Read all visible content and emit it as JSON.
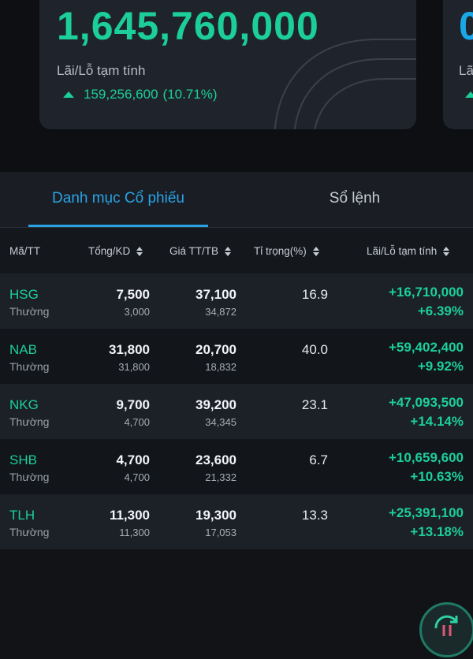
{
  "summary_card": {
    "value": "1,645,760,000",
    "pnl_label": "Lãi/Lỗ tạm tính",
    "pnl_value": "159,256,600",
    "pnl_pct": "(10.71%)"
  },
  "summary_card_2": {
    "value": "0",
    "pnl_label": "Lã"
  },
  "tabs": [
    {
      "label": "Danh mục Cổ phiếu",
      "active": true
    },
    {
      "label": "Sổ lệnh",
      "active": false
    }
  ],
  "table": {
    "headers": {
      "symbol": "Mã/TT",
      "total": "Tổng/KD",
      "price": "Giá TT/TB",
      "weight": "Tỉ trọng(%)",
      "pnl": "Lãi/Lỗ tạm tính"
    },
    "rows": [
      {
        "symbol": "HSG",
        "type": "Thường",
        "total": "7,500",
        "available": "3,000",
        "price": "37,100",
        "avg_price": "34,872",
        "weight": "16.9",
        "pnl": "+16,710,000",
        "pnl_pct": "+6.39%"
      },
      {
        "symbol": "NAB",
        "type": "Thường",
        "total": "31,800",
        "available": "31,800",
        "price": "20,700",
        "avg_price": "18,832",
        "weight": "40.0",
        "pnl": "+59,402,400",
        "pnl_pct": "+9.92%"
      },
      {
        "symbol": "NKG",
        "type": "Thường",
        "total": "9,700",
        "available": "4,700",
        "price": "39,200",
        "avg_price": "34,345",
        "weight": "23.1",
        "pnl": "+47,093,500",
        "pnl_pct": "+14.14%"
      },
      {
        "symbol": "SHB",
        "type": "Thường",
        "total": "4,700",
        "available": "4,700",
        "price": "23,600",
        "avg_price": "21,332",
        "weight": "6.7",
        "pnl": "+10,659,600",
        "pnl_pct": "+10.63%"
      },
      {
        "symbol": "TLH",
        "type": "Thường",
        "total": "11,300",
        "available": "11,300",
        "price": "19,300",
        "avg_price": "17,053",
        "weight": "13.3",
        "pnl": "+25,391,100",
        "pnl_pct": "+13.18%"
      }
    ]
  },
  "colors": {
    "positive": "#1ccf9a",
    "accent": "#29a3e6",
    "background": "#111317"
  },
  "icons": {
    "pnl_trend": "triangle-up-icon",
    "sort": "sort-icon",
    "fab": "refresh-icon"
  }
}
